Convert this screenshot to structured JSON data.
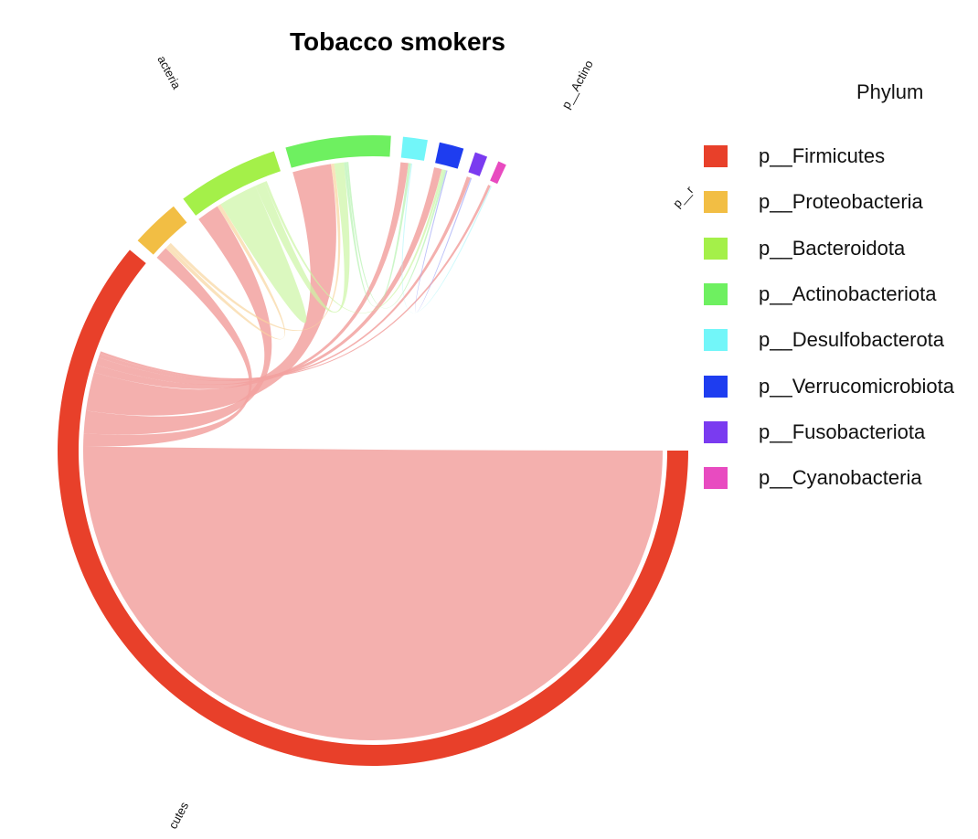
{
  "chart_data": {
    "type": "chord",
    "title": "Tobacco smokers",
    "legend_title": "Phylum",
    "legend_position": "right",
    "sectors": [
      {
        "name": "p__Firmicutes",
        "color": "#E8402A",
        "label_shown": "cutes"
      },
      {
        "name": "p__Proteobacteria",
        "color": "#F2BE44",
        "label_shown": "acteria"
      },
      {
        "name": "p__Bacteroidota",
        "color": "#A4F049",
        "label_shown": ""
      },
      {
        "name": "p__Actinobacteriota",
        "color": "#6EF060",
        "label_shown": "p__Actino"
      },
      {
        "name": "p__Desulfobacterota",
        "color": "#72F6F9",
        "label_shown": "p__r"
      },
      {
        "name": "p__Verrucomicrobiota",
        "color": "#1E3DF0",
        "label_shown": ""
      },
      {
        "name": "p__Fusobacteriota",
        "color": "#7A3BF0",
        "label_shown": ""
      },
      {
        "name": "p__Cyanobacteria",
        "color": "#E84BC0",
        "label_shown": ""
      }
    ],
    "sector_sizes": [
      1700,
      70,
      145,
      150,
      35,
      35,
      18,
      12
    ],
    "links": [
      {
        "from": "p__Firmicutes",
        "to": "p__Firmicutes",
        "value": 700
      },
      {
        "from": "p__Firmicutes",
        "to": "p__Proteobacteria",
        "value": 20
      },
      {
        "from": "p__Firmicutes",
        "to": "p__Bacteroidota",
        "value": 35
      },
      {
        "from": "p__Firmicutes",
        "to": "p__Actinobacteriota",
        "value": 60
      },
      {
        "from": "p__Firmicutes",
        "to": "p__Desulfobacterota",
        "value": 12
      },
      {
        "from": "p__Firmicutes",
        "to": "p__Verrucomicrobiota",
        "value": 12
      },
      {
        "from": "p__Firmicutes",
        "to": "p__Fusobacteriota",
        "value": 6
      },
      {
        "from": "p__Firmicutes",
        "to": "p__Cyanobacteria",
        "value": 4
      },
      {
        "from": "p__Proteobacteria",
        "to": "p__Bacteroidota",
        "value": 6
      },
      {
        "from": "p__Proteobacteria",
        "to": "p__Actinobacteriota",
        "value": 5
      },
      {
        "from": "p__Bacteroidota",
        "to": "p__Bacteroidota",
        "value": 30
      },
      {
        "from": "p__Bacteroidota",
        "to": "p__Actinobacteriota",
        "value": 15
      },
      {
        "from": "p__Bacteroidota",
        "to": "p__Verrucomicrobiota",
        "value": 4
      },
      {
        "from": "p__Actinobacteriota",
        "to": "p__Desulfobacterota",
        "value": 4
      },
      {
        "from": "p__Actinobacteriota",
        "to": "p__Verrucomicrobiota",
        "value": 3
      },
      {
        "from": "p__Verrucomicrobiota",
        "to": "p__Fusobacteriota",
        "value": 2
      },
      {
        "from": "p__Desulfobacterota",
        "to": "p__Cyanobacteria",
        "value": 2
      }
    ],
    "link_colors": [
      "#F2A2A0",
      "#F8D5A0",
      "#CCF5A4",
      "#B6F2B0",
      "#B5F6F9",
      "#A2AAF6",
      "#C8A4F6",
      "#F2A6DC"
    ]
  }
}
